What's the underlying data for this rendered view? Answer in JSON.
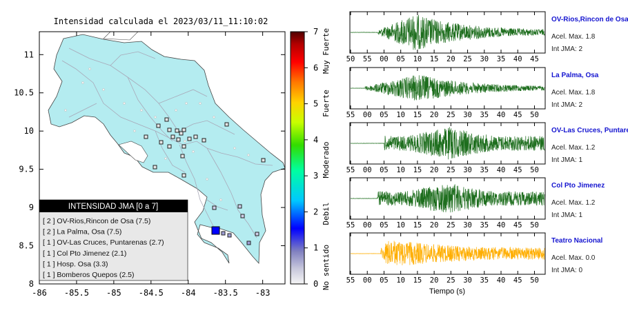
{
  "map": {
    "title": "Intensidad calculada el 2023/03/11_11:10:02",
    "xticks": [
      "-86",
      "-85.5",
      "-85",
      "-84.5",
      "-84",
      "-83.5",
      "-83"
    ],
    "yticks": [
      "11",
      "10.5",
      "10",
      "9.5",
      "9",
      "8.5",
      "8"
    ],
    "xlim": [
      -86,
      -82.7
    ],
    "ylim": [
      8,
      11.3
    ],
    "land_color": "#b4ecf0",
    "epicenter_color": "#0000ff",
    "legend": {
      "title": "INTENSIDAD JMA [0 a 7]",
      "items": [
        "[ 2 ]  OV-Rios,Rincon de Osa (7.5)",
        "[ 2 ]  La Palma, Osa (7.5)",
        "[ 1 ]  OV-Las Cruces, Puntarenas (2.7)",
        "[ 1 ]  Col Pto Jimenez (2.1)",
        "[ 1 ]  Hosp. Osa (3.3)",
        "[ 1 ]  Bomberos Quepos (2.5)"
      ]
    }
  },
  "colorbar": {
    "ticks": [
      "0",
      "1",
      "2",
      "3",
      "4",
      "5",
      "6",
      "7"
    ],
    "labels": [
      "No sentido",
      "Debil",
      "Moderado",
      "Fuerte",
      "Muy Fuerte"
    ]
  },
  "chart_data": {
    "type": "line",
    "xlabel": "Tiempo (s)",
    "traces": [
      {
        "name": "OV-Rios,Rincon de Osa",
        "accel": "Acel. Max. 1.8",
        "intensity": "Int JMA: 2",
        "ticks": [
          "50",
          "55",
          "00",
          "05",
          "10",
          "15",
          "20",
          "25",
          "30",
          "35",
          "40",
          "45"
        ],
        "color": "#1e6e1e",
        "amplitude": 1.8,
        "p_arrival_s": 5,
        "s_arrival_s": 12,
        "duration_s": 57
      },
      {
        "name": "La Palma, Osa",
        "accel": "Acel. Max. 1.8",
        "intensity": "Int JMA: 2",
        "ticks": [
          "55",
          "00",
          "05",
          "10",
          "15",
          "20",
          "25",
          "30",
          "35",
          "40",
          "45",
          "50"
        ],
        "color": "#1e6e1e",
        "amplitude": 1.8,
        "p_arrival_s": 0,
        "s_arrival_s": 15,
        "duration_s": 57
      },
      {
        "name": "OV-Las Cruces, Puntaren",
        "accel": "Acel. Max. 1.2",
        "intensity": "Int JMA: 1",
        "ticks": [
          "55",
          "00",
          "05",
          "10",
          "15",
          "20",
          "25",
          "30",
          "35",
          "40",
          "45",
          "50"
        ],
        "color": "#1e6e1e",
        "amplitude": 1.2,
        "p_arrival_s": 5,
        "s_arrival_s": 20,
        "duration_s": 57
      },
      {
        "name": "Col Pto Jimenez",
        "accel": "Acel. Max. 1.2",
        "intensity": "Int JMA: 1",
        "ticks": [
          "55",
          "00",
          "05",
          "10",
          "15",
          "20",
          "25",
          "30",
          "35",
          "40",
          "45",
          "50"
        ],
        "color": "#1e6e1e",
        "amplitude": 1.2,
        "p_arrival_s": 5,
        "s_arrival_s": 22,
        "duration_s": 57
      },
      {
        "name": "Teatro Nacional",
        "accel": "Acel. Max. 0.0",
        "intensity": "Int JMA: 0",
        "ticks": [
          "55",
          "00",
          "05",
          "10",
          "15",
          "20",
          "25",
          "30",
          "35",
          "40",
          "45",
          "50"
        ],
        "color": "#ffae00",
        "amplitude": 0.0,
        "p_arrival_s": 5,
        "s_arrival_s": 10,
        "duration_s": 57
      }
    ]
  }
}
